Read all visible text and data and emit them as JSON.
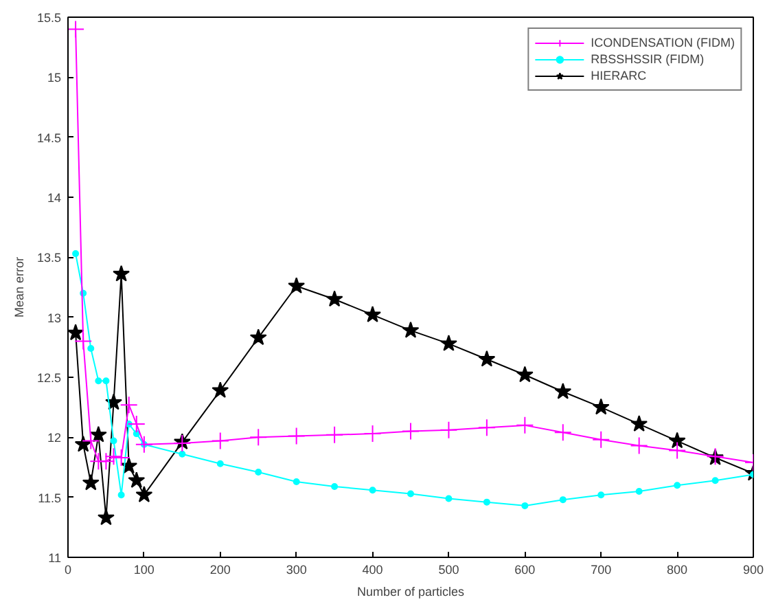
{
  "chart_data": {
    "type": "line",
    "xlabel": "Number of particles",
    "ylabel": "Mean error",
    "x": [
      10,
      20,
      30,
      40,
      50,
      60,
      70,
      80,
      90,
      100,
      150,
      200,
      250,
      300,
      350,
      400,
      450,
      500,
      550,
      600,
      650,
      700,
      750,
      800,
      850,
      900
    ],
    "series": [
      {
        "name": "ICONDENSATION (FIDM)",
        "color": "#ff00ff",
        "marker": "cross",
        "values": [
          15.4,
          12.8,
          11.97,
          11.8,
          11.8,
          11.84,
          11.83,
          12.27,
          12.11,
          11.94,
          11.95,
          11.97,
          12.0,
          12.01,
          12.02,
          12.03,
          12.05,
          12.06,
          12.08,
          12.1,
          12.04,
          11.98,
          11.93,
          11.89,
          11.84,
          11.79
        ]
      },
      {
        "name": "RBSSHSSIR (FIDM)",
        "color": "#00ffff",
        "marker": "circle",
        "values": [
          13.53,
          13.2,
          12.74,
          12.47,
          12.47,
          11.97,
          11.52,
          12.11,
          12.03,
          11.94,
          11.86,
          11.78,
          11.71,
          11.63,
          11.59,
          11.56,
          11.53,
          11.49,
          11.46,
          11.43,
          11.48,
          11.52,
          11.55,
          11.6,
          11.64,
          11.69
        ]
      },
      {
        "name": "HIERARC",
        "color": "#000000",
        "marker": "star",
        "values": [
          12.87,
          11.94,
          11.62,
          12.02,
          11.33,
          12.29,
          13.36,
          11.76,
          11.64,
          11.52,
          11.96,
          12.39,
          12.83,
          13.26,
          13.15,
          13.02,
          12.89,
          12.78,
          12.65,
          12.52,
          12.38,
          12.25,
          12.11,
          11.97,
          11.83,
          11.7
        ]
      }
    ],
    "xlim": [
      0,
      900
    ],
    "ylim": [
      11,
      15.5
    ],
    "xticks": [
      0,
      100,
      200,
      300,
      400,
      500,
      600,
      700,
      800,
      900
    ],
    "yticks": [
      11,
      11.5,
      12,
      12.5,
      13,
      13.5,
      14,
      14.5,
      15,
      15.5
    ],
    "grid": false,
    "legend": "top right",
    "line_style": "solid"
  }
}
